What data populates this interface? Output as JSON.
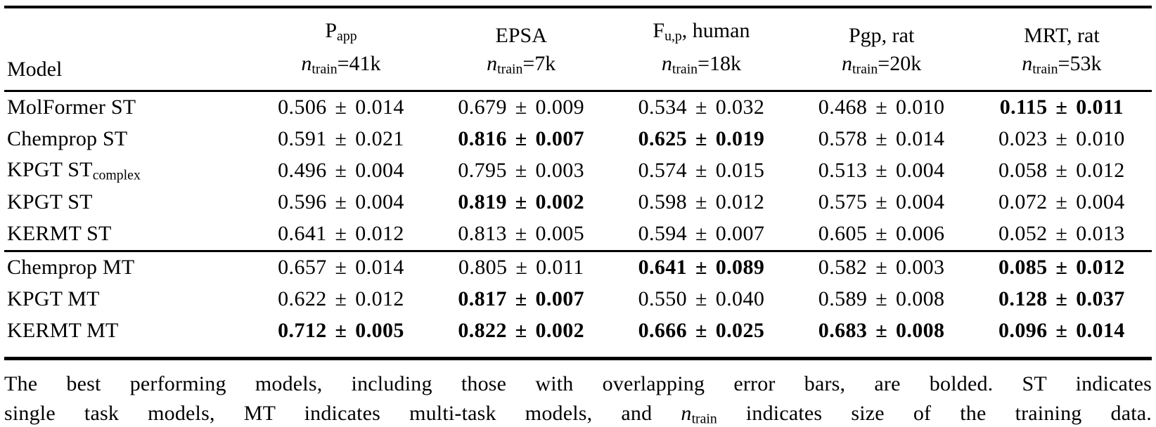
{
  "table": {
    "model_label": "Model",
    "pm": "±",
    "ntrain_label": {
      "n": "n",
      "sub": "train",
      "eq": "="
    },
    "columns": [
      {
        "key": "papp",
        "title": [
          {
            "t": "P"
          },
          {
            "t": "app",
            "sub": true
          }
        ],
        "ntrain": "41k"
      },
      {
        "key": "epsa",
        "title": [
          {
            "t": "EPSA"
          }
        ],
        "ntrain": "7k"
      },
      {
        "key": "fup-human",
        "title": [
          {
            "t": "F"
          },
          {
            "t": "u,p",
            "sub": true
          },
          {
            "t": ", human"
          }
        ],
        "ntrain": "18k"
      },
      {
        "key": "pgp-rat",
        "title": [
          {
            "t": "Pgp, rat"
          }
        ],
        "ntrain": "20k"
      },
      {
        "key": "mrt-rat",
        "title": [
          {
            "t": "MRT, rat"
          }
        ],
        "ntrain": "53k"
      }
    ],
    "groups": [
      {
        "key": "st",
        "rows": [
          {
            "key": "molformer-st",
            "model": [
              {
                "t": "MolFormer ST"
              }
            ],
            "cells": [
              {
                "value": "0.506",
                "error": "0.014",
                "bold": false
              },
              {
                "value": "0.679",
                "error": "0.009",
                "bold": false
              },
              {
                "value": "0.534",
                "error": "0.032",
                "bold": false
              },
              {
                "value": "0.468",
                "error": "0.010",
                "bold": false
              },
              {
                "value": "0.115",
                "error": "0.011",
                "bold": true
              }
            ]
          },
          {
            "key": "chemprop-st",
            "model": [
              {
                "t": "Chemprop ST"
              }
            ],
            "cells": [
              {
                "value": "0.591",
                "error": "0.021",
                "bold": false
              },
              {
                "value": "0.816",
                "error": "0.007",
                "bold": true
              },
              {
                "value": "0.625",
                "error": "0.019",
                "bold": true
              },
              {
                "value": "0.578",
                "error": "0.014",
                "bold": false
              },
              {
                "value": "0.023",
                "error": "0.010",
                "bold": false
              }
            ]
          },
          {
            "key": "kpgt-st-complex",
            "model": [
              {
                "t": "KPGT ST"
              },
              {
                "t": "complex",
                "sub": true
              }
            ],
            "cells": [
              {
                "value": "0.496",
                "error": "0.004",
                "bold": false
              },
              {
                "value": "0.795",
                "error": "0.003",
                "bold": false
              },
              {
                "value": "0.574",
                "error": "0.015",
                "bold": false
              },
              {
                "value": "0.513",
                "error": "0.004",
                "bold": false
              },
              {
                "value": "0.058",
                "error": "0.012",
                "bold": false
              }
            ]
          },
          {
            "key": "kpgt-st",
            "model": [
              {
                "t": "KPGT ST"
              }
            ],
            "cells": [
              {
                "value": "0.596",
                "error": "0.004",
                "bold": false
              },
              {
                "value": "0.819",
                "error": "0.002",
                "bold": true
              },
              {
                "value": "0.598",
                "error": "0.012",
                "bold": false
              },
              {
                "value": "0.575",
                "error": "0.004",
                "bold": false
              },
              {
                "value": "0.072",
                "error": "0.004",
                "bold": false
              }
            ]
          },
          {
            "key": "kermt-st",
            "model": [
              {
                "t": "KERMT ST"
              }
            ],
            "cells": [
              {
                "value": "0.641",
                "error": "0.012",
                "bold": false
              },
              {
                "value": "0.813",
                "error": "0.005",
                "bold": false
              },
              {
                "value": "0.594",
                "error": "0.007",
                "bold": false
              },
              {
                "value": "0.605",
                "error": "0.006",
                "bold": false
              },
              {
                "value": "0.052",
                "error": "0.013",
                "bold": false
              }
            ]
          }
        ]
      },
      {
        "key": "mt",
        "rows": [
          {
            "key": "chemprop-mt",
            "model": [
              {
                "t": "Chemprop MT"
              }
            ],
            "cells": [
              {
                "value": "0.657",
                "error": "0.014",
                "bold": false
              },
              {
                "value": "0.805",
                "error": "0.011",
                "bold": false
              },
              {
                "value": "0.641",
                "error": "0.089",
                "bold": true
              },
              {
                "value": "0.582",
                "error": "0.003",
                "bold": false
              },
              {
                "value": "0.085",
                "error": "0.012",
                "bold": true
              }
            ]
          },
          {
            "key": "kpgt-mt",
            "model": [
              {
                "t": "KPGT MT"
              }
            ],
            "cells": [
              {
                "value": "0.622",
                "error": "0.012",
                "bold": false
              },
              {
                "value": "0.817",
                "error": "0.007",
                "bold": true
              },
              {
                "value": "0.550",
                "error": "0.040",
                "bold": false
              },
              {
                "value": "0.589",
                "error": "0.008",
                "bold": false
              },
              {
                "value": "0.128",
                "error": "0.037",
                "bold": true
              }
            ]
          },
          {
            "key": "kermt-mt",
            "model": [
              {
                "t": "KERMT MT"
              }
            ],
            "cells": [
              {
                "value": "0.712",
                "error": "0.005",
                "bold": true
              },
              {
                "value": "0.822",
                "error": "0.002",
                "bold": true
              },
              {
                "value": "0.666",
                "error": "0.025",
                "bold": true
              },
              {
                "value": "0.683",
                "error": "0.008",
                "bold": true
              },
              {
                "value": "0.096",
                "error": "0.014",
                "bold": true
              }
            ]
          }
        ]
      }
    ]
  },
  "caption": {
    "line1": [
      {
        "t": "The best performing models, including those with overlapping error bars, are bolded. ST indicates"
      }
    ],
    "line2": [
      {
        "t": "single task models, MT indicates multi-task models, and "
      },
      {
        "t": "n",
        "italic": true
      },
      {
        "t": "train",
        "sub": true
      },
      {
        "t": " indicates size of the training data."
      }
    ]
  }
}
